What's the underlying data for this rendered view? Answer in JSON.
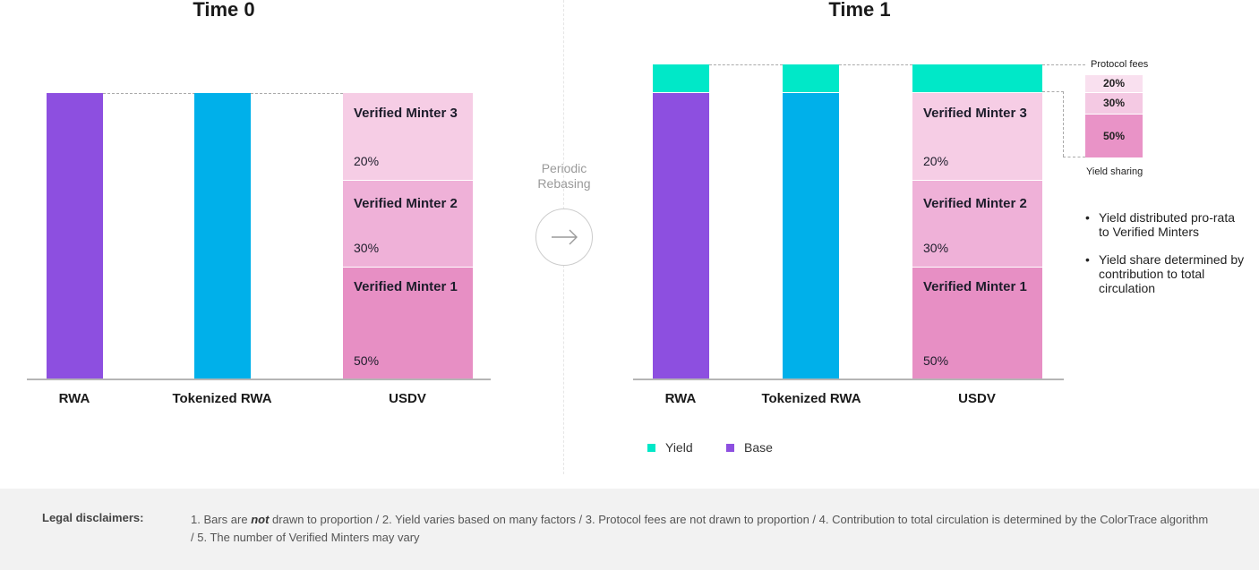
{
  "colors": {
    "rwa": "#8d4fe0",
    "tokenized": "#00b0ea",
    "yield": "#00e8c8",
    "minter3": "#f6cde5",
    "minter2": "#efb1d8",
    "minter1": "#e78fc4",
    "fee20": "#f9e0ef",
    "fee30": "#f4c9e3",
    "fee50": "#e993c7"
  },
  "left": {
    "title": "Time 0",
    "categories": [
      "RWA",
      "Tokenized RWA",
      "USDV"
    ],
    "minters": [
      {
        "name": "Verified Minter 3",
        "pct": "20%"
      },
      {
        "name": "Verified Minter 2",
        "pct": "30%"
      },
      {
        "name": "Verified Minter 1",
        "pct": "50%"
      }
    ]
  },
  "center": {
    "label_line1": "Periodic",
    "label_line2": "Rebasing",
    "arrow_icon": "arrow-right-icon"
  },
  "right": {
    "title": "Time 1",
    "categories": [
      "RWA",
      "Tokenized RWA",
      "USDV"
    ],
    "minters": [
      {
        "name": "Verified Minter 3",
        "pct": "20%"
      },
      {
        "name": "Verified Minter 2",
        "pct": "30%"
      },
      {
        "name": "Verified Minter 1",
        "pct": "50%"
      }
    ],
    "protocol_fees_label": "Protocol fees",
    "fee_boxes": [
      "20%",
      "30%",
      "50%"
    ],
    "yield_sharing_label": "Yield sharing",
    "bullets": [
      "Yield distributed pro-rata to Verified Minters",
      "Yield share determined by contribution to total circulation"
    ],
    "legend": [
      {
        "name": "Yield",
        "color": "#00e8c8"
      },
      {
        "name": "Base",
        "color": "#8d4fe0"
      }
    ]
  },
  "footer": {
    "label": "Legal disclaimers:",
    "text_prefix": "1. Bars are ",
    "text_emphasis": "not",
    "text_suffix": " drawn to proportion / 2. Yield varies based on many factors / 3. Protocol fees are not drawn to proportion /  4. Contribution to total circulation is determined by the ColorTrace algorithm / 5. The number of Verified Minters may vary"
  }
}
